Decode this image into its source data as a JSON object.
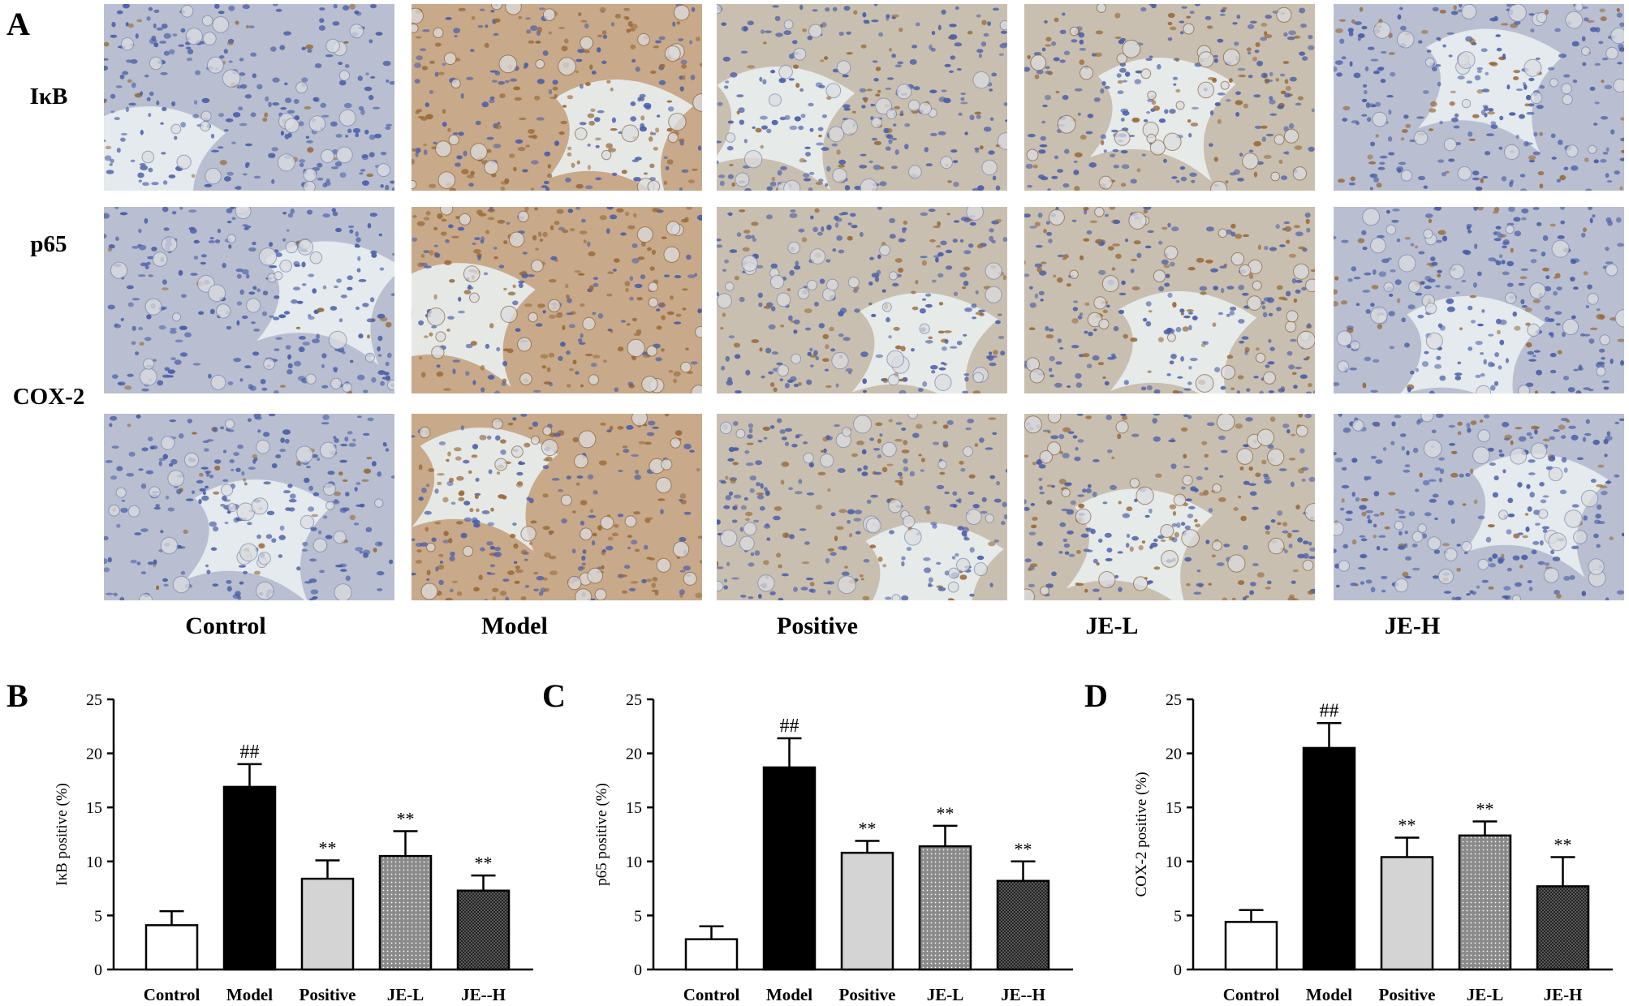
{
  "panel_a": {
    "letter": "A",
    "row_labels": [
      "IκB",
      "p65",
      "COX-2"
    ],
    "column_labels": [
      "Control",
      "Model",
      "Positive",
      "JE-L",
      "JE-H"
    ]
  },
  "chart_data": [
    {
      "letter": "B",
      "type": "bar",
      "ylabel": "IκB positive (%)",
      "ylim": [
        0,
        25
      ],
      "yticks": [
        0,
        5,
        10,
        15,
        20,
        25
      ],
      "categories": [
        "Control",
        "Model",
        "Positive",
        "JE-L",
        "JE--H"
      ],
      "values": [
        4.1,
        16.9,
        8.4,
        10.5,
        7.3
      ],
      "errors": [
        1.3,
        2.1,
        1.7,
        2.3,
        1.4
      ],
      "annotations": [
        "",
        "##",
        "**",
        "**",
        "**"
      ]
    },
    {
      "letter": "C",
      "type": "bar",
      "ylabel": "p65 positive (%)",
      "ylim": [
        0,
        25
      ],
      "yticks": [
        0,
        5,
        10,
        15,
        20,
        25
      ],
      "categories": [
        "Control",
        "Model",
        "Positive",
        "JE-L",
        "JE--H"
      ],
      "values": [
        2.8,
        18.7,
        10.8,
        11.4,
        8.2
      ],
      "errors": [
        1.2,
        2.7,
        1.1,
        1.9,
        1.8
      ],
      "annotations": [
        "",
        "##",
        "**",
        "**",
        "**"
      ]
    },
    {
      "letter": "D",
      "type": "bar",
      "ylabel": "COX-2 positive (%)",
      "ylim": [
        0,
        25
      ],
      "yticks": [
        0,
        5,
        10,
        15,
        20,
        25
      ],
      "categories": [
        "Control",
        "Model",
        "Positive",
        "JE-L",
        "JE-H"
      ],
      "values": [
        4.4,
        20.5,
        10.4,
        12.4,
        7.7
      ],
      "errors": [
        1.1,
        2.3,
        1.8,
        1.3,
        2.7
      ],
      "annotations": [
        "",
        "##",
        "**",
        "**",
        "**"
      ]
    }
  ],
  "colors": {
    "control": "#ffffff",
    "model": "#000000",
    "positive": "#d4d4d4",
    "je_l": "#8a8a8a",
    "je_h": "#5a5a5a",
    "tissue_blue": "#4a5ea8",
    "tissue_brown": "#9a6a3a",
    "lumen": "#e9eef0"
  }
}
